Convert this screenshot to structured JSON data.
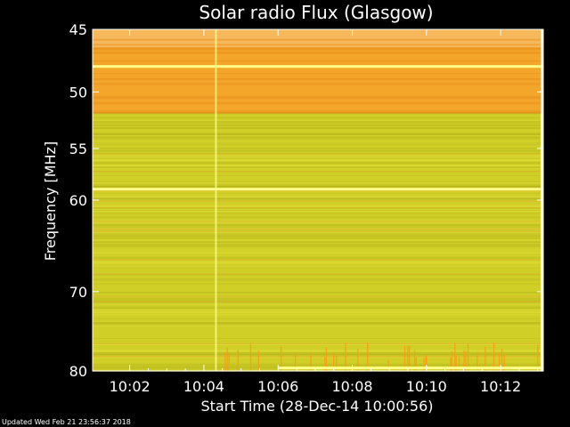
{
  "chart_data": {
    "type": "heatmap",
    "title": "Solar radio Flux (Glasgow)",
    "xlabel": "Start Time (28-Dec-14 10:00:56)",
    "ylabel": "Frequency [MHz]",
    "x_ticks": [
      "10:02",
      "10:04",
      "10:06",
      "10:08",
      "10:10",
      "10:12"
    ],
    "x_tick_minutes": [
      2,
      4,
      6,
      8,
      10,
      12
    ],
    "xlim_minutes": [
      1,
      13.15
    ],
    "y_ticks": [
      45,
      50,
      55,
      60,
      70,
      80
    ],
    "ylim": [
      45,
      80
    ],
    "y_scale": "log",
    "colors": {
      "high_band": "#f4a62a",
      "high_band_light": "#f8bd6e",
      "body": "#cfcf27",
      "body_light": "#e2e23c",
      "bright_line": "#ffff8a",
      "background": "#000000",
      "text": "#ffffff"
    },
    "bright_lines_mhz": [
      47.9,
      58.9,
      79.6
    ],
    "onset_minute": 4.3
  },
  "footer": {
    "updated": "Updated Wed Feb 21 23:56:37 2018"
  }
}
